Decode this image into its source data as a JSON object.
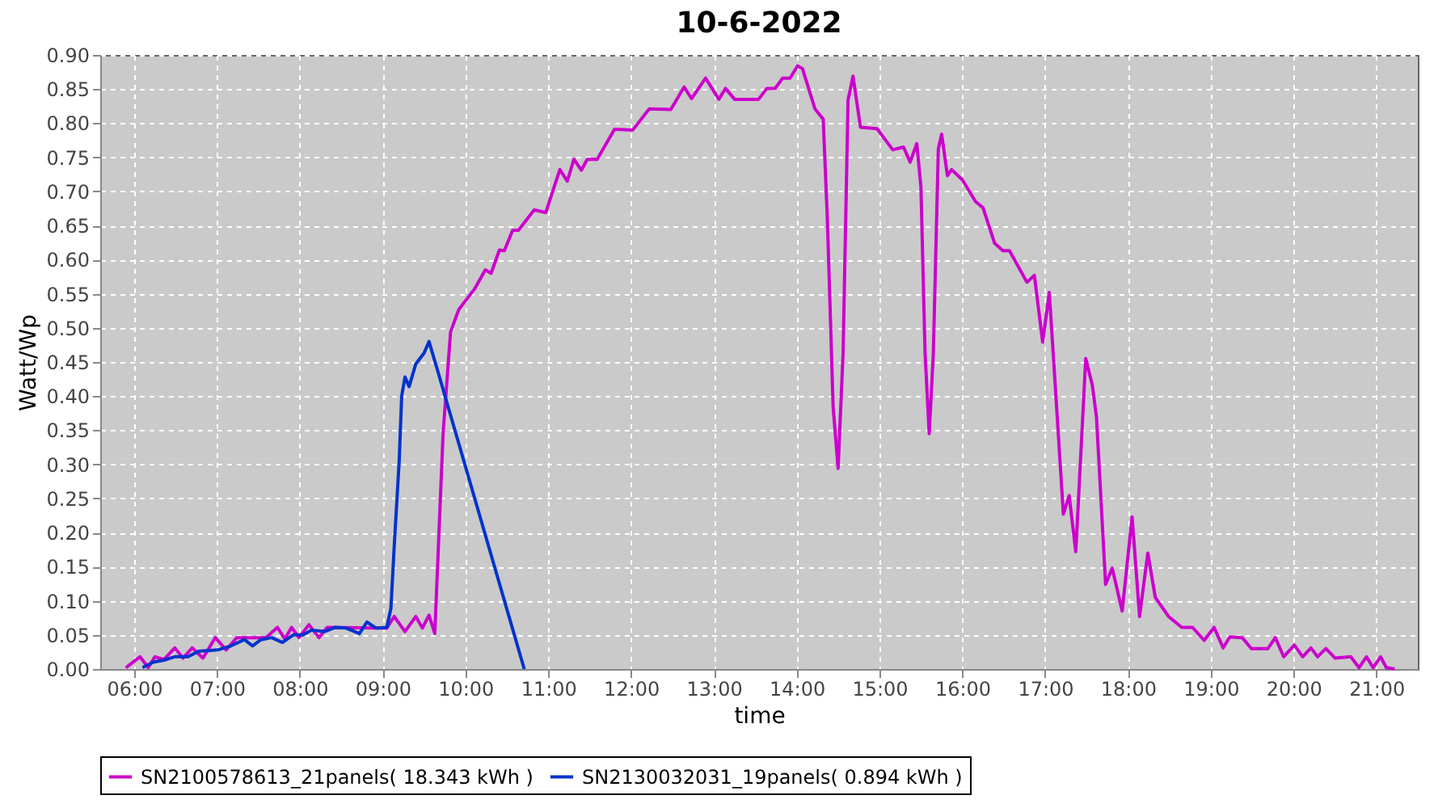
{
  "chart_data": {
    "type": "line",
    "title": "10-6-2022",
    "xlabel": "time",
    "ylabel": "Watt/Wp",
    "xlim": [
      5.59,
      21.5
    ],
    "xticks": [
      {
        "value": 6,
        "label": "06:00"
      },
      {
        "value": 7,
        "label": "07:00"
      },
      {
        "value": 8,
        "label": "08:00"
      },
      {
        "value": 9,
        "label": "09:00"
      },
      {
        "value": 10,
        "label": "10:00"
      },
      {
        "value": 11,
        "label": "11:00"
      },
      {
        "value": 12,
        "label": "12:00"
      },
      {
        "value": 13,
        "label": "13:00"
      },
      {
        "value": 14,
        "label": "14:00"
      },
      {
        "value": 15,
        "label": "15:00"
      },
      {
        "value": 16,
        "label": "16:00"
      },
      {
        "value": 17,
        "label": "17:00"
      },
      {
        "value": 18,
        "label": "18:00"
      },
      {
        "value": 19,
        "label": "19:00"
      },
      {
        "value": 20,
        "label": "20:00"
      },
      {
        "value": 21,
        "label": "21:00"
      }
    ],
    "ylim": [
      0,
      0.9
    ],
    "yticks": [
      {
        "value": 0,
        "label": "0.00"
      },
      {
        "value": 0.05,
        "label": "0.05"
      },
      {
        "value": 0.1,
        "label": "0.10"
      },
      {
        "value": 0.15,
        "label": "0.15"
      },
      {
        "value": 0.2,
        "label": "0.20"
      },
      {
        "value": 0.25,
        "label": "0.25"
      },
      {
        "value": 0.3,
        "label": "0.30"
      },
      {
        "value": 0.35,
        "label": "0.35"
      },
      {
        "value": 0.4,
        "label": "0.40"
      },
      {
        "value": 0.45,
        "label": "0.45"
      },
      {
        "value": 0.5,
        "label": "0.50"
      },
      {
        "value": 0.55,
        "label": "0.55"
      },
      {
        "value": 0.6,
        "label": "0.60"
      },
      {
        "value": 0.65,
        "label": "0.65"
      },
      {
        "value": 0.7,
        "label": "0.70"
      },
      {
        "value": 0.75,
        "label": "0.75"
      },
      {
        "value": 0.8,
        "label": "0.80"
      },
      {
        "value": 0.85,
        "label": "0.85"
      },
      {
        "value": 0.9,
        "label": "0.90"
      }
    ],
    "grid": true,
    "legend": "bottom",
    "marker": "none",
    "line_style": "solid",
    "series": [
      {
        "name": "SN2100578613_21panels( 18.343 kWh )",
        "color": "#cc00cc",
        "x": [
          5.9,
          6.07,
          6.17,
          6.25,
          6.36,
          6.49,
          6.59,
          6.7,
          6.83,
          6.98,
          7.11,
          7.24,
          7.59,
          7.73,
          7.82,
          7.9,
          7.99,
          8.11,
          8.23,
          8.33,
          8.95,
          9.05,
          9.14,
          9.27,
          9.4,
          9.48,
          9.56,
          9.63,
          9.73,
          9.82,
          9.92,
          10.11,
          10.24,
          10.31,
          10.41,
          10.47,
          10.57,
          10.64,
          10.83,
          10.97,
          11.14,
          11.23,
          11.31,
          11.4,
          11.47,
          11.59,
          11.8,
          12.02,
          12.22,
          12.48,
          12.64,
          12.73,
          12.9,
          13.06,
          13.14,
          13.25,
          13.54,
          13.64,
          13.74,
          13.83,
          13.92,
          14.01,
          14.07,
          14.22,
          14.32,
          14.37,
          14.44,
          14.5,
          14.56,
          14.62,
          14.68,
          14.77,
          14.97,
          15.16,
          15.29,
          15.37,
          15.45,
          15.5,
          15.55,
          15.6,
          15.65,
          15.71,
          15.75,
          15.82,
          15.87,
          16.0,
          16.16,
          16.25,
          16.39,
          16.49,
          16.57,
          16.78,
          16.87,
          16.97,
          17.05,
          17.13,
          17.22,
          17.29,
          17.37,
          17.49,
          17.57,
          17.62,
          17.73,
          17.81,
          17.93,
          18.05,
          18.14,
          18.24,
          18.33,
          18.49,
          18.65,
          18.78,
          18.92,
          19.04,
          19.15,
          19.23,
          19.38,
          19.49,
          19.69,
          19.78,
          19.88,
          20.01,
          20.11,
          20.21,
          20.29,
          20.39,
          20.5,
          20.69,
          20.79,
          20.88,
          20.96,
          21.05,
          21.12,
          21.22
        ],
        "values": [
          0.002,
          0.018,
          0.002,
          0.018,
          0.014,
          0.031,
          0.016,
          0.031,
          0.016,
          0.046,
          0.028,
          0.046,
          0.046,
          0.061,
          0.044,
          0.061,
          0.046,
          0.065,
          0.046,
          0.061,
          0.06,
          0.06,
          0.077,
          0.055,
          0.077,
          0.06,
          0.079,
          0.052,
          0.345,
          0.494,
          0.527,
          0.557,
          0.585,
          0.58,
          0.614,
          0.613,
          0.643,
          0.643,
          0.673,
          0.669,
          0.732,
          0.715,
          0.747,
          0.731,
          0.747,
          0.747,
          0.791,
          0.79,
          0.821,
          0.82,
          0.853,
          0.836,
          0.866,
          0.835,
          0.851,
          0.835,
          0.835,
          0.851,
          0.851,
          0.866,
          0.866,
          0.884,
          0.88,
          0.821,
          0.806,
          0.66,
          0.384,
          0.294,
          0.463,
          0.834,
          0.869,
          0.794,
          0.792,
          0.761,
          0.765,
          0.743,
          0.77,
          0.707,
          0.463,
          0.345,
          0.463,
          0.762,
          0.784,
          0.723,
          0.732,
          0.717,
          0.685,
          0.676,
          0.624,
          0.613,
          0.613,
          0.567,
          0.577,
          0.479,
          0.552,
          0.4,
          0.227,
          0.254,
          0.172,
          0.455,
          0.416,
          0.369,
          0.124,
          0.148,
          0.085,
          0.223,
          0.077,
          0.17,
          0.105,
          0.077,
          0.061,
          0.061,
          0.042,
          0.061,
          0.031,
          0.047,
          0.046,
          0.03,
          0.03,
          0.046,
          0.018,
          0.035,
          0.018,
          0.031,
          0.018,
          0.03,
          0.016,
          0.018,
          0.002,
          0.018,
          0.002,
          0.018,
          0.002,
          0.0
        ]
      },
      {
        "name": "SN2130032031_19panels( 0.894 kWh )",
        "color": "#0033cc",
        "x": [
          6.1,
          6.23,
          6.36,
          6.49,
          6.65,
          6.78,
          7.01,
          7.17,
          7.33,
          7.43,
          7.53,
          7.66,
          7.79,
          7.92,
          8.04,
          8.14,
          8.3,
          8.43,
          8.56,
          8.72,
          8.81,
          8.92,
          9.05,
          9.1,
          9.14,
          9.2,
          9.23,
          9.27,
          9.32,
          9.4,
          9.5,
          9.56,
          9.66,
          10.71
        ],
        "values": [
          0.002,
          0.01,
          0.013,
          0.018,
          0.018,
          0.026,
          0.028,
          0.034,
          0.043,
          0.034,
          0.043,
          0.046,
          0.039,
          0.05,
          0.05,
          0.057,
          0.055,
          0.061,
          0.06,
          0.052,
          0.069,
          0.06,
          0.061,
          0.089,
          0.18,
          0.305,
          0.4,
          0.428,
          0.414,
          0.447,
          0.463,
          0.48,
          0.439,
          0.0
        ]
      }
    ]
  }
}
